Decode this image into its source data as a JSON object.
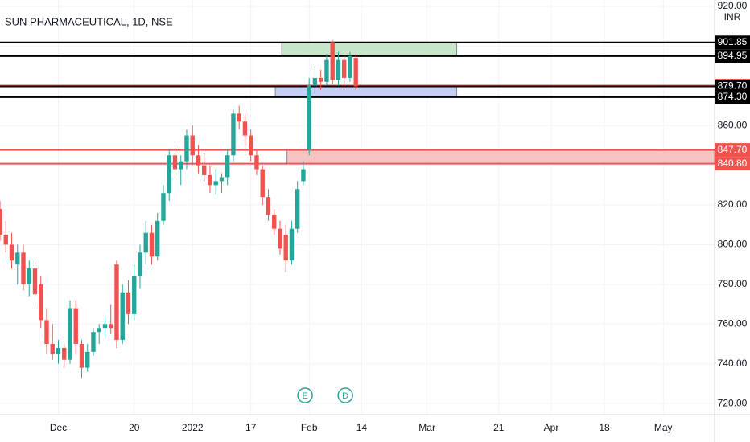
{
  "chart_data": {
    "type": "candlestick",
    "title": "SUN PHARMACEUTICAL, 1D, NSE",
    "currency": "INR",
    "x": [
      0,
      1,
      2,
      3,
      4,
      5,
      6,
      7,
      8,
      9,
      10,
      11,
      12,
      13,
      14,
      15,
      16,
      17,
      18,
      19,
      20,
      21,
      22,
      23,
      24,
      25,
      26,
      27,
      28,
      29,
      30,
      31,
      32,
      33,
      34,
      35,
      36,
      37,
      38,
      39,
      40,
      41,
      42,
      43,
      44,
      45,
      46,
      47,
      48,
      49,
      50,
      51,
      52,
      53,
      54,
      55,
      56,
      57,
      58,
      59,
      60,
      61
    ],
    "open": [
      818,
      805,
      800,
      790,
      796,
      780,
      788,
      780,
      762,
      750,
      745,
      748,
      742,
      768,
      750,
      738,
      746,
      756,
      758,
      760,
      790,
      752,
      776,
      765,
      784,
      796,
      806,
      794,
      812,
      826,
      845,
      838,
      842,
      855,
      845,
      840,
      835,
      830,
      832,
      834,
      845,
      866,
      862,
      855,
      845,
      838,
      824,
      815,
      808,
      805,
      792,
      808,
      832,
      847.7,
      880,
      884,
      882,
      902,
      883,
      893,
      884,
      894
    ],
    "high": [
      822,
      812,
      806,
      800,
      800,
      792,
      792,
      784,
      768,
      760,
      752,
      750,
      772,
      772,
      752,
      750,
      758,
      760,
      764,
      770,
      792,
      780,
      782,
      790,
      800,
      812,
      810,
      816,
      830,
      848,
      850,
      845,
      858,
      860,
      850,
      846,
      840,
      838,
      836,
      848,
      868,
      870,
      866,
      858,
      848,
      840,
      828,
      818,
      812,
      810,
      812,
      832,
      842,
      884,
      890,
      888,
      896,
      903,
      897,
      895,
      897,
      896
    ],
    "low": [
      802,
      796,
      788,
      780,
      777,
      774,
      770,
      758,
      745,
      742,
      740,
      738,
      740,
      745,
      733,
      736,
      744,
      750,
      754,
      755,
      748,
      750,
      760,
      762,
      778,
      790,
      790,
      792,
      810,
      822,
      835,
      830,
      838,
      840,
      836,
      832,
      826,
      825,
      826,
      830,
      842,
      858,
      850,
      842,
      835,
      820,
      812,
      805,
      795,
      786,
      790,
      806,
      830,
      845,
      876,
      878,
      880,
      881,
      880,
      880,
      882,
      878
    ],
    "close": [
      805,
      800,
      792,
      796,
      780,
      788,
      775,
      762,
      750,
      745,
      748,
      742,
      768,
      750,
      738,
      746,
      756,
      758,
      760,
      758,
      752,
      776,
      765,
      784,
      796,
      806,
      794,
      812,
      826,
      845,
      838,
      842,
      855,
      845,
      840,
      835,
      830,
      832,
      834,
      845,
      866,
      862,
      855,
      845,
      838,
      824,
      815,
      808,
      798,
      792,
      808,
      828,
      838,
      880.1,
      884,
      882,
      893,
      883,
      893,
      884,
      894.95,
      879.7
    ],
    "up_color": "#26a69a",
    "down_color": "#ef5350",
    "xlim": [
      0,
      122.5
    ],
    "ylim": [
      716,
      922
    ],
    "grid": true,
    "xticks": [
      {
        "value": 10,
        "label": "Dec"
      },
      {
        "value": 23,
        "label": "20"
      },
      {
        "value": 33,
        "label": "2022"
      },
      {
        "value": 43,
        "label": "17"
      },
      {
        "value": 53,
        "label": "Feb"
      },
      {
        "value": 62,
        "label": "14"
      },
      {
        "value": 73.2,
        "label": "Mar"
      },
      {
        "value": 85.5,
        "label": "21"
      },
      {
        "value": 94.5,
        "label": "Apr"
      },
      {
        "value": 103.6,
        "label": "18"
      },
      {
        "value": 113.7,
        "label": "May"
      }
    ],
    "yticks": [
      {
        "value": 720,
        "label": "720.00"
      },
      {
        "value": 740,
        "label": "740.00"
      },
      {
        "value": 760,
        "label": "760.00"
      },
      {
        "value": 780,
        "label": "780.00"
      },
      {
        "value": 800,
        "label": "800.00"
      },
      {
        "value": 820,
        "label": "820.00"
      },
      {
        "value": 840,
        "label": "840.00"
      },
      {
        "value": 860,
        "label": "860.00"
      },
      {
        "value": 880,
        "label": "880.00"
      },
      {
        "value": 900,
        "label": "900.00"
      },
      {
        "value": 920,
        "label": "920.00"
      }
    ],
    "zones": [
      {
        "low": 894.95,
        "high": 901.85,
        "x0": 48.3,
        "x1": 78.3,
        "color": "#c8e6c9"
      },
      {
        "low": 874.3,
        "high": 880.1,
        "x0": 47.2,
        "x1": 78.3,
        "color": "#c5cff5"
      },
      {
        "low": 840.8,
        "high": 847.7,
        "x0": 49.2,
        "x1": 122.5,
        "color": "#f7c4c3"
      }
    ],
    "levels": [
      {
        "value": 901.85,
        "label": "901.85",
        "color": "#000000"
      },
      {
        "value": 894.95,
        "label": "894.95",
        "color": "#000000"
      },
      {
        "value": 880.1,
        "label": "880.10",
        "color": "#ef5350"
      },
      {
        "value": 879.7,
        "label": "879.70",
        "color": "#000000"
      },
      {
        "value": 874.3,
        "label": "874.30",
        "color": "#000000"
      },
      {
        "value": 847.7,
        "label": "847.70",
        "color": "#ef5350"
      },
      {
        "value": 840.8,
        "label": "840.80",
        "color": "#ef5350"
      }
    ],
    "events": [
      {
        "label": "E",
        "x": 52.3
      },
      {
        "label": "D",
        "x": 59.2
      }
    ]
  }
}
